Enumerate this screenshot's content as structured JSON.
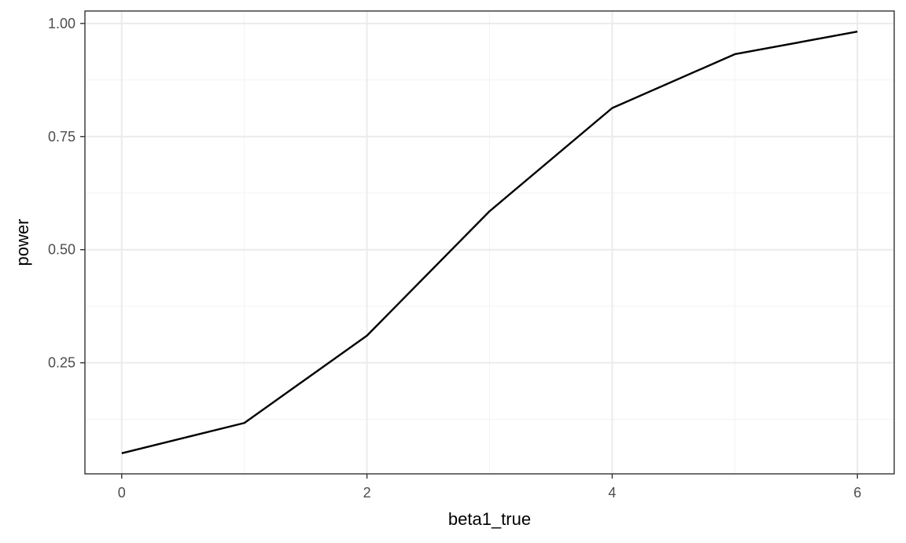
{
  "chart_data": {
    "type": "line",
    "title": "",
    "xlabel": "beta1_true",
    "ylabel": "power",
    "x": [
      0,
      1,
      2,
      3,
      4,
      5,
      6
    ],
    "series": [
      {
        "values": [
          0.05,
          0.117,
          0.31,
          0.585,
          0.813,
          0.932,
          0.982
        ]
      }
    ],
    "xlim": [
      -0.3,
      6.3
    ],
    "ylim": [
      0.0045,
      1.0275
    ],
    "x_ticks": [
      0,
      2,
      4,
      6
    ],
    "x_tick_labels": [
      "0",
      "2",
      "4",
      "6"
    ],
    "x_minor_ticks": [
      1,
      3,
      5
    ],
    "y_ticks": [
      0.25,
      0.5,
      0.75,
      1.0
    ],
    "y_tick_labels": [
      "0.25",
      "0.50",
      "0.75",
      "1.00"
    ],
    "y_minor_ticks": [
      0.125,
      0.375,
      0.625,
      0.875
    ],
    "grid": true,
    "legend": "none",
    "colors": {
      "line": "#000000",
      "panel_border": "#333333",
      "grid_major": "#ebebeb",
      "grid_minor": "#f3f3f3",
      "tick_text": "#4d4d4d"
    }
  }
}
